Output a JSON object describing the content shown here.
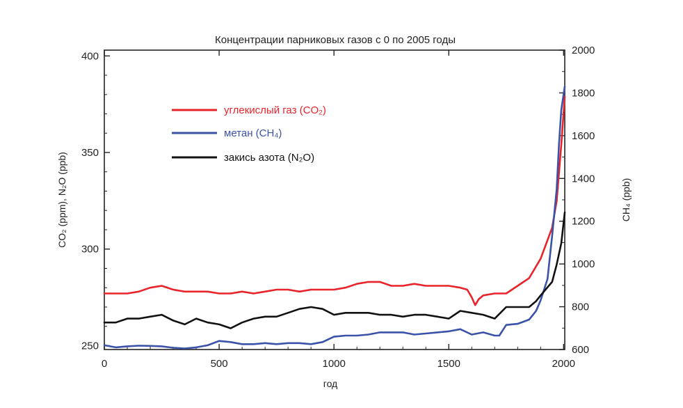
{
  "chart_data": {
    "type": "line",
    "title": "Концентрации парниковых газов с 0 по 2005 годы",
    "xlabel": "год",
    "ylabel_left": "CO₂ (ppm), N₂O (ppb)",
    "ylabel_right": "CH₄ (ppb)",
    "xlim": [
      0,
      2005
    ],
    "ylim_left": [
      248,
      403
    ],
    "ylim_right": [
      600,
      2000
    ],
    "x_ticks": [
      0,
      500,
      1000,
      1500,
      2000
    ],
    "y_left_ticks": [
      250,
      300,
      350,
      400
    ],
    "y_right_ticks": [
      600,
      800,
      1000,
      1200,
      1400,
      1600,
      1800,
      2000
    ],
    "grid": false,
    "legend_position": "upper-left",
    "series": [
      {
        "name": "углекислый газ (CO₂)",
        "color": "#e8232a",
        "axis": "left",
        "points": [
          [
            0,
            277
          ],
          [
            50,
            277
          ],
          [
            100,
            277
          ],
          [
            150,
            278
          ],
          [
            200,
            280
          ],
          [
            250,
            281
          ],
          [
            300,
            279
          ],
          [
            350,
            278
          ],
          [
            400,
            278
          ],
          [
            450,
            278
          ],
          [
            500,
            277
          ],
          [
            550,
            277
          ],
          [
            600,
            278
          ],
          [
            650,
            277
          ],
          [
            700,
            278
          ],
          [
            750,
            279
          ],
          [
            800,
            279
          ],
          [
            850,
            278
          ],
          [
            900,
            279
          ],
          [
            950,
            279
          ],
          [
            1000,
            279
          ],
          [
            1050,
            280
          ],
          [
            1100,
            282
          ],
          [
            1150,
            283
          ],
          [
            1200,
            283
          ],
          [
            1250,
            281
          ],
          [
            1300,
            281
          ],
          [
            1350,
            282
          ],
          [
            1400,
            281
          ],
          [
            1450,
            281
          ],
          [
            1500,
            281
          ],
          [
            1550,
            280
          ],
          [
            1580,
            279
          ],
          [
            1600,
            275
          ],
          [
            1615,
            271
          ],
          [
            1630,
            274
          ],
          [
            1650,
            276
          ],
          [
            1700,
            277
          ],
          [
            1750,
            277
          ],
          [
            1800,
            281
          ],
          [
            1850,
            285
          ],
          [
            1900,
            295
          ],
          [
            1950,
            311
          ],
          [
            1970,
            325
          ],
          [
            1990,
            354
          ],
          [
            2005,
            379
          ]
        ]
      },
      {
        "name": "метан (CH₄)",
        "color": "#3a52a8",
        "axis": "right",
        "points": [
          [
            0,
            620
          ],
          [
            50,
            610
          ],
          [
            100,
            615
          ],
          [
            150,
            618
          ],
          [
            200,
            617
          ],
          [
            250,
            615
          ],
          [
            300,
            608
          ],
          [
            350,
            605
          ],
          [
            400,
            610
          ],
          [
            450,
            620
          ],
          [
            500,
            640
          ],
          [
            550,
            635
          ],
          [
            600,
            625
          ],
          [
            650,
            625
          ],
          [
            700,
            630
          ],
          [
            750,
            625
          ],
          [
            800,
            630
          ],
          [
            850,
            630
          ],
          [
            900,
            625
          ],
          [
            950,
            635
          ],
          [
            1000,
            660
          ],
          [
            1050,
            665
          ],
          [
            1100,
            665
          ],
          [
            1150,
            670
          ],
          [
            1200,
            680
          ],
          [
            1250,
            680
          ],
          [
            1300,
            680
          ],
          [
            1350,
            670
          ],
          [
            1400,
            675
          ],
          [
            1450,
            680
          ],
          [
            1500,
            685
          ],
          [
            1550,
            695
          ],
          [
            1600,
            670
          ],
          [
            1650,
            680
          ],
          [
            1700,
            665
          ],
          [
            1720,
            665
          ],
          [
            1750,
            715
          ],
          [
            1800,
            720
          ],
          [
            1850,
            740
          ],
          [
            1880,
            780
          ],
          [
            1900,
            830
          ],
          [
            1930,
            930
          ],
          [
            1950,
            1130
          ],
          [
            1970,
            1350
          ],
          [
            1980,
            1560
          ],
          [
            1990,
            1720
          ],
          [
            2005,
            1830
          ]
        ]
      },
      {
        "name": "закись азота (N₂O)",
        "color": "#111111",
        "axis": "left",
        "points": [
          [
            0,
            262
          ],
          [
            50,
            262
          ],
          [
            100,
            264
          ],
          [
            150,
            264
          ],
          [
            200,
            265
          ],
          [
            250,
            266
          ],
          [
            300,
            263
          ],
          [
            350,
            261
          ],
          [
            400,
            264
          ],
          [
            450,
            262
          ],
          [
            500,
            261
          ],
          [
            550,
            259
          ],
          [
            600,
            262
          ],
          [
            650,
            264
          ],
          [
            700,
            265
          ],
          [
            750,
            265
          ],
          [
            800,
            267
          ],
          [
            850,
            269
          ],
          [
            900,
            270
          ],
          [
            950,
            269
          ],
          [
            1000,
            266
          ],
          [
            1050,
            267
          ],
          [
            1100,
            267
          ],
          [
            1150,
            267
          ],
          [
            1200,
            266
          ],
          [
            1250,
            266
          ],
          [
            1300,
            265
          ],
          [
            1350,
            266
          ],
          [
            1400,
            266
          ],
          [
            1450,
            265
          ],
          [
            1500,
            264
          ],
          [
            1550,
            268
          ],
          [
            1600,
            267
          ],
          [
            1650,
            266
          ],
          [
            1700,
            264
          ],
          [
            1750,
            270
          ],
          [
            1800,
            270
          ],
          [
            1850,
            270
          ],
          [
            1880,
            273
          ],
          [
            1900,
            276
          ],
          [
            1950,
            283
          ],
          [
            1970,
            292
          ],
          [
            1990,
            303
          ],
          [
            2005,
            319
          ]
        ]
      }
    ]
  }
}
